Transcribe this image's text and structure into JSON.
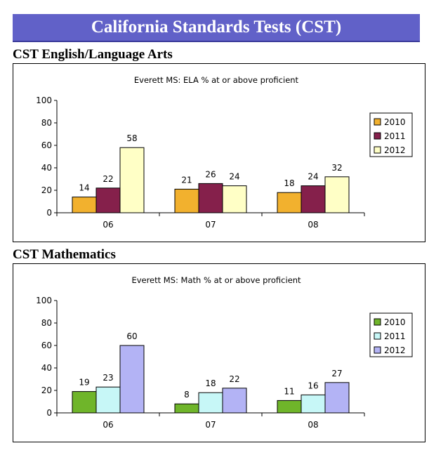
{
  "banner": {
    "title": "California Standards Tests (CST)"
  },
  "sections": [
    {
      "heading": "CST English/Language Arts"
    },
    {
      "heading": "CST Mathematics"
    }
  ],
  "chart_data": [
    {
      "type": "bar",
      "title": "Everett MS: ELA % at or above proficient",
      "categories": [
        "06",
        "07",
        "08"
      ],
      "ylim": [
        0,
        100
      ],
      "yticks": [
        0,
        20,
        40,
        60,
        80,
        100
      ],
      "grid": false,
      "legend_position": "right",
      "series": [
        {
          "name": "2010",
          "color": "#f2b12e",
          "values": [
            14,
            21,
            18
          ]
        },
        {
          "name": "2011",
          "color": "#85204b",
          "values": [
            22,
            26,
            24
          ]
        },
        {
          "name": "2012",
          "color": "#ffffc6",
          "values": [
            58,
            24,
            32
          ]
        }
      ]
    },
    {
      "type": "bar",
      "title": "Everett MS: Math % at or above proficient",
      "categories": [
        "06",
        "07",
        "08"
      ],
      "ylim": [
        0,
        100
      ],
      "yticks": [
        0,
        20,
        40,
        60,
        80,
        100
      ],
      "grid": false,
      "legend_position": "right",
      "series": [
        {
          "name": "2010",
          "color": "#6fb52a",
          "values": [
            19,
            8,
            11
          ]
        },
        {
          "name": "2011",
          "color": "#c7f7f7",
          "values": [
            23,
            18,
            16
          ]
        },
        {
          "name": "2012",
          "color": "#b3b3f5",
          "values": [
            60,
            22,
            27
          ]
        }
      ]
    }
  ]
}
